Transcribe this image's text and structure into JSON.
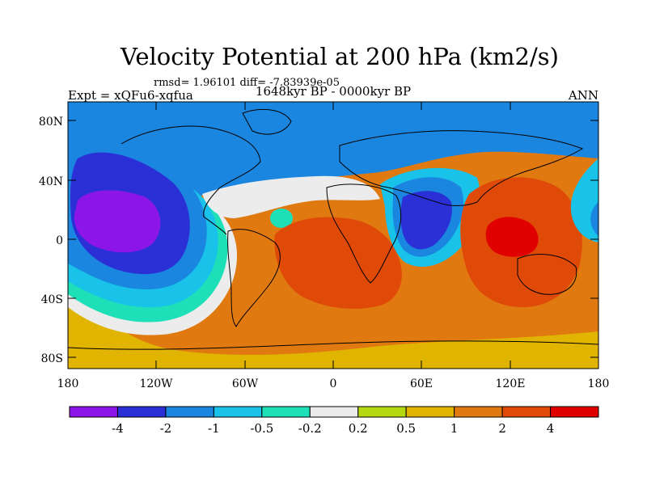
{
  "title": "Velocity Potential at 200 hPa (km2/s)",
  "stats_line": "rmsd= 1.96101  diff= -7.83939e-05",
  "left_label": "Expt = xQFu6-xqfua",
  "center_label": "1648kyr BP - 0000kyr BP",
  "right_label": "ANN",
  "lat_ticks": [
    "80N",
    "40N",
    "0",
    "40S",
    "80S"
  ],
  "lon_ticks": [
    "180",
    "120W",
    "60W",
    "0",
    "60E",
    "120E",
    "180"
  ],
  "colorbar": {
    "colors": [
      "#8c16e8",
      "#2a30d6",
      "#1a86e0",
      "#19c2e8",
      "#1de0b8",
      "#ececec",
      "#b6d80e",
      "#e0b400",
      "#e07a10",
      "#e04a08",
      "#e00000"
    ],
    "labels": [
      "-4",
      "-2",
      "-1",
      "-0.5",
      "-0.2",
      "0.2",
      "0.5",
      "1",
      "2",
      "4"
    ]
  }
}
